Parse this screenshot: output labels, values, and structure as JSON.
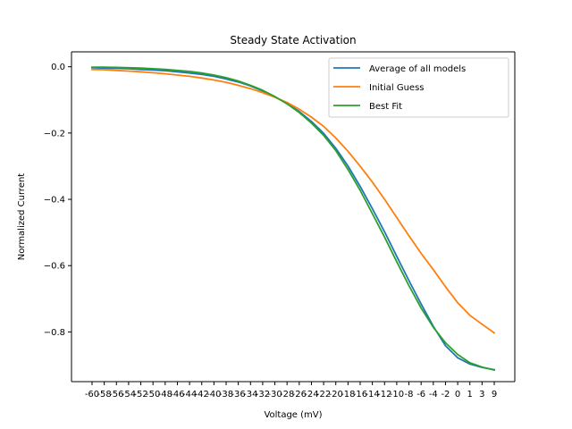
{
  "chart_data": {
    "type": "line",
    "title": "Steady State Activation",
    "xlabel": "Voltage (mV)",
    "ylabel": "Normalized Current",
    "x": [
      -60,
      -58,
      -56,
      -54,
      -52,
      -50,
      -48,
      -46,
      -44,
      -42,
      -40,
      -38,
      -36,
      -34,
      -32,
      -30,
      -28,
      -26,
      -24,
      -22,
      -20,
      -18,
      -16,
      -14,
      -12,
      -10,
      -8,
      -6,
      -4,
      -2,
      0,
      1,
      3,
      9
    ],
    "x_tick_labels": [
      "-60",
      "-58",
      "-56",
      "-54",
      "-52",
      "-50",
      "-48",
      "-46",
      "-44",
      "-42",
      "-40",
      "-38",
      "-36",
      "-34",
      "-32",
      "-30",
      "-28",
      "-26",
      "-24",
      "-22",
      "-20",
      "-18",
      "-16",
      "-14",
      "-12",
      "-10",
      "-8",
      "-6",
      "-4",
      "-2",
      "0",
      "1",
      "3",
      "9"
    ],
    "y_ticks": [
      0.0,
      -0.2,
      -0.4,
      -0.6,
      -0.8
    ],
    "y_tick_labels": [
      "0.0",
      "−0.2",
      "−0.4",
      "−0.6",
      "−0.8"
    ],
    "ylim": [
      -0.95,
      0.045
    ],
    "legend_position": "upper right",
    "grid": false,
    "series": [
      {
        "name": "Average of all models",
        "color": "#1f77b4",
        "values": [
          -0.003,
          -0.004,
          -0.005,
          -0.006,
          -0.008,
          -0.01,
          -0.012,
          -0.015,
          -0.019,
          -0.023,
          -0.029,
          -0.037,
          -0.046,
          -0.058,
          -0.073,
          -0.09,
          -0.111,
          -0.135,
          -0.165,
          -0.201,
          -0.246,
          -0.3,
          -0.361,
          -0.428,
          -0.498,
          -0.572,
          -0.645,
          -0.716,
          -0.783,
          -0.842,
          -0.878,
          -0.897,
          -0.907,
          -0.914
        ]
      },
      {
        "name": "Initial Guess",
        "color": "#ff7f0e",
        "values": [
          -0.008,
          -0.009,
          -0.011,
          -0.013,
          -0.015,
          -0.018,
          -0.021,
          -0.025,
          -0.029,
          -0.034,
          -0.04,
          -0.047,
          -0.056,
          -0.066,
          -0.078,
          -0.092,
          -0.108,
          -0.128,
          -0.152,
          -0.18,
          -0.215,
          -0.255,
          -0.3,
          -0.348,
          -0.4,
          -0.455,
          -0.51,
          -0.563,
          -0.612,
          -0.664,
          -0.712,
          -0.75,
          -0.777,
          -0.803
        ]
      },
      {
        "name": "Best Fit",
        "color": "#2ca02c",
        "values": [
          -0.001,
          -0.001,
          -0.002,
          -0.003,
          -0.004,
          -0.006,
          -0.008,
          -0.011,
          -0.014,
          -0.019,
          -0.025,
          -0.033,
          -0.043,
          -0.056,
          -0.071,
          -0.09,
          -0.112,
          -0.138,
          -0.17,
          -0.207,
          -0.253,
          -0.31,
          -0.373,
          -0.443,
          -0.514,
          -0.588,
          -0.66,
          -0.728,
          -0.786,
          -0.833,
          -0.868,
          -0.893,
          -0.906,
          -0.915
        ]
      }
    ]
  }
}
